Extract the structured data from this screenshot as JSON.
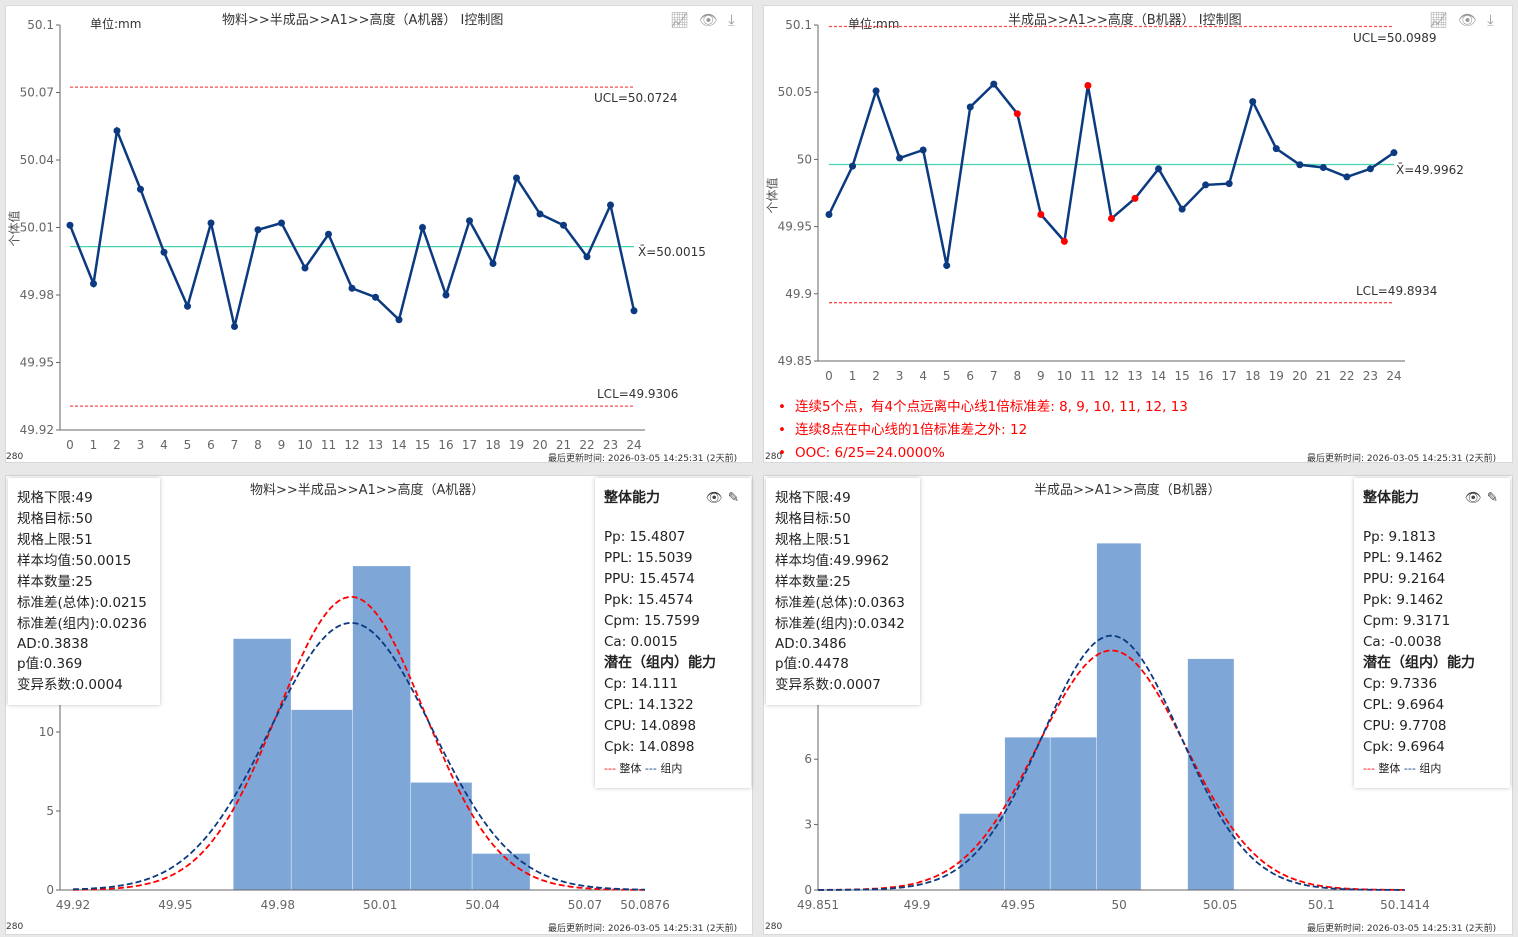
{
  "colors": {
    "line": "#0b3a80",
    "ooc": "#ff0000",
    "limit": "#ff4d4f",
    "center": "#45d6b0",
    "bar": "#7ea7d8",
    "overall": "#ff0000",
    "within": "#0b3a80"
  },
  "footer": {
    "count": "280",
    "updated": "最后更新时间: 2026-03-05 14:25:31 (2天前)"
  },
  "icons": [
    "line-chart-icon",
    "eye-icon",
    "download-icon"
  ],
  "control_a": {
    "title": "物料>>半成品>>A1>>高度（A机器） I控制图",
    "unit": "单位:mm",
    "ylabel": "个体值",
    "ucl_label": "UCL=50.0724",
    "lcl_label": "LCL=49.9306",
    "mean_label": "X̄=50.0015"
  },
  "control_b": {
    "title": "半成品>>A1>>高度（B机器） I控制图",
    "unit": "单位:mm",
    "ylabel": "个体值",
    "ucl_label": "UCL=50.0989",
    "lcl_label": "LCL=49.8934",
    "mean_label": "X̄=49.9962",
    "rules": [
      "连续5个点，有4个点远离中心线1倍标准差: 8, 9, 10, 11, 12, 13",
      "连续8点在中心线的1倍标准差之外: 12",
      "OOC: 6/25=24.0000%"
    ]
  },
  "hist_a": {
    "title": "物料>>半成品>>A1>>高度（A机器）",
    "stats": [
      "规格下限:49",
      "规格目标:50",
      "规格上限:51",
      "样本均值:50.0015",
      "样本数量:25",
      "标准差(总体):0.0215",
      "标准差(组内):0.0236",
      "AD:0.3838",
      "p值:0.369",
      "变异系数:0.0004"
    ],
    "overall_title": "整体能力",
    "overall": [
      "Pp: 15.4807",
      "PPL: 15.5039",
      "PPU: 15.4574",
      "Ppk: 15.4574",
      "Cpm: 15.7599",
      "Ca: 0.0015"
    ],
    "within_title": "潜在（组内）能力",
    "within": [
      "Cp: 14.111",
      "CPL: 14.1322",
      "CPU: 14.0898",
      "Cpk: 14.0898"
    ],
    "legend_overall": "整体",
    "legend_within": "组内"
  },
  "hist_b": {
    "title": "半成品>>A1>>高度（B机器）",
    "stats": [
      "规格下限:49",
      "规格目标:50",
      "规格上限:51",
      "样本均值:49.9962",
      "样本数量:25",
      "标准差(总体):0.0363",
      "标准差(组内):0.0342",
      "AD:0.3486",
      "p值:0.4478",
      "变异系数:0.0007"
    ],
    "overall_title": "整体能力",
    "overall": [
      "Pp: 9.1813",
      "PPL: 9.1462",
      "PPU: 9.2164",
      "Ppk: 9.1462",
      "Cpm: 9.3171",
      "Ca: -0.0038"
    ],
    "within_title": "潜在（组内）能力",
    "within": [
      "Cp: 9.7336",
      "CPL: 9.6964",
      "CPU: 9.7708",
      "Cpk: 9.6964"
    ],
    "legend_overall": "整体",
    "legend_within": "组内"
  },
  "chart_data": [
    {
      "type": "line",
      "title": "物料>>半成品>>A1>>高度（A机器） I控制图",
      "ylabel": "个体值",
      "x": [
        0,
        1,
        2,
        3,
        4,
        5,
        6,
        7,
        8,
        9,
        10,
        11,
        12,
        13,
        14,
        15,
        16,
        17,
        18,
        19,
        20,
        21,
        22,
        23,
        24
      ],
      "values": [
        50.011,
        49.985,
        50.053,
        50.027,
        49.999,
        49.975,
        50.012,
        49.966,
        50.009,
        50.012,
        49.992,
        50.007,
        49.983,
        49.979,
        49.969,
        50.01,
        49.98,
        50.013,
        49.994,
        50.032,
        50.016,
        50.011,
        49.997,
        50.02,
        49.973
      ],
      "ooc": [],
      "ucl": 50.0724,
      "lcl": 49.9306,
      "mean": 50.0015,
      "ylim": [
        49.92,
        50.1
      ],
      "yticks": [
        "49.92",
        "49.95",
        "49.98",
        "50.01",
        "50.04",
        "50.07",
        "50.1"
      ]
    },
    {
      "type": "line",
      "title": "半成品>>A1>>高度（B机器） I控制图",
      "ylabel": "个体值",
      "x": [
        0,
        1,
        2,
        3,
        4,
        5,
        6,
        7,
        8,
        9,
        10,
        11,
        12,
        13,
        14,
        15,
        16,
        17,
        18,
        19,
        20,
        21,
        22,
        23,
        24
      ],
      "values": [
        49.959,
        49.995,
        50.051,
        50.001,
        50.007,
        49.921,
        50.039,
        50.056,
        50.034,
        49.959,
        49.939,
        50.055,
        49.956,
        49.971,
        49.993,
        49.963,
        49.981,
        49.982,
        50.043,
        50.008,
        49.996,
        49.994,
        49.987,
        49.993,
        50.005
      ],
      "ooc": [
        8,
        9,
        10,
        11,
        12,
        13
      ],
      "ucl": 50.0989,
      "lcl": 49.8934,
      "mean": 49.9962,
      "ylim": [
        49.85,
        50.1
      ],
      "yticks": [
        "49.85",
        "49.9",
        "49.95",
        "50",
        "50.05",
        "50.1"
      ]
    },
    {
      "type": "bar",
      "title": "物料>>半成品>>A1>>高度（A机器）",
      "bin_edges": [
        49.967,
        49.984,
        50.002,
        50.019,
        50.037,
        50.054
      ],
      "values": [
        15.9,
        11.4,
        20.5,
        6.8,
        2.3
      ],
      "mean": 50.0015,
      "sd_overall": 0.0215,
      "sd_within": 0.0236,
      "xlim": [
        49.92,
        50.0876
      ],
      "xticks": [
        "49.92",
        "49.95",
        "49.98",
        "50.01",
        "50.04",
        "50.07",
        "50.0876"
      ],
      "yticks": [
        "0",
        "5",
        "10"
      ],
      "legend": [
        "整体",
        "组内"
      ]
    },
    {
      "type": "bar",
      "title": "半成品>>A1>>高度（B机器）",
      "bin_edges": [
        49.921,
        49.9435,
        49.966,
        49.989,
        50.011,
        50.034,
        50.057
      ],
      "values": [
        3.5,
        7.0,
        7.0,
        15.9,
        0,
        10.6
      ],
      "mean": 49.9962,
      "sd_overall": 0.0363,
      "sd_within": 0.0342,
      "xlim": [
        49.851,
        50.1414
      ],
      "xticks": [
        "49.851",
        "49.9",
        "49.95",
        "50",
        "50.05",
        "50.1",
        "50.1414"
      ],
      "yticks": [
        "0",
        "3",
        "6"
      ],
      "legend": [
        "整体",
        "组内"
      ]
    }
  ]
}
